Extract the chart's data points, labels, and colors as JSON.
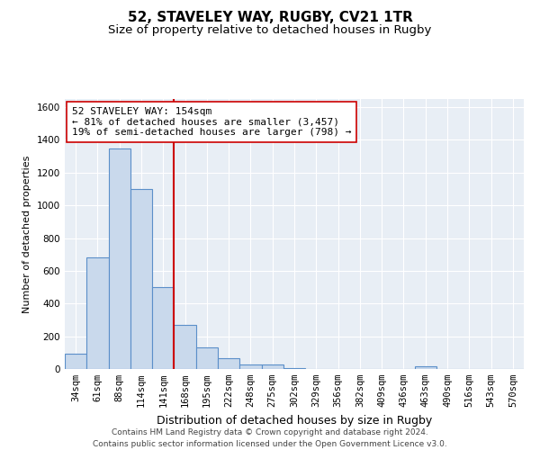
{
  "title": "52, STAVELEY WAY, RUGBY, CV21 1TR",
  "subtitle": "Size of property relative to detached houses in Rugby",
  "xlabel": "Distribution of detached houses by size in Rugby",
  "ylabel": "Number of detached properties",
  "categories": [
    "34sqm",
    "61sqm",
    "88sqm",
    "114sqm",
    "141sqm",
    "168sqm",
    "195sqm",
    "222sqm",
    "248sqm",
    "275sqm",
    "302sqm",
    "329sqm",
    "356sqm",
    "382sqm",
    "409sqm",
    "436sqm",
    "463sqm",
    "490sqm",
    "516sqm",
    "543sqm",
    "570sqm"
  ],
  "values": [
    95,
    680,
    1350,
    1100,
    500,
    270,
    130,
    65,
    30,
    30,
    5,
    0,
    0,
    0,
    0,
    0,
    15,
    0,
    0,
    0,
    0
  ],
  "bar_color": "#c9d9ec",
  "bar_edgecolor": "#5b8fc9",
  "bar_linewidth": 0.8,
  "vline_x": 4.5,
  "vline_color": "#cc0000",
  "vline_linewidth": 1.5,
  "annotation_text": "52 STAVELEY WAY: 154sqm\n← 81% of detached houses are smaller (3,457)\n19% of semi-detached houses are larger (798) →",
  "annotation_box_color": "#ffffff",
  "annotation_box_edgecolor": "#cc0000",
  "ylim": [
    0,
    1650
  ],
  "yticks": [
    0,
    200,
    400,
    600,
    800,
    1000,
    1200,
    1400,
    1600
  ],
  "bg_color": "#e8eef5",
  "grid_color": "#ffffff",
  "footer_text": "Contains HM Land Registry data © Crown copyright and database right 2024.\nContains public sector information licensed under the Open Government Licence v3.0.",
  "title_fontsize": 11,
  "subtitle_fontsize": 9.5,
  "xlabel_fontsize": 9,
  "ylabel_fontsize": 8,
  "tick_fontsize": 7.5,
  "annotation_fontsize": 8,
  "footer_fontsize": 6.5
}
